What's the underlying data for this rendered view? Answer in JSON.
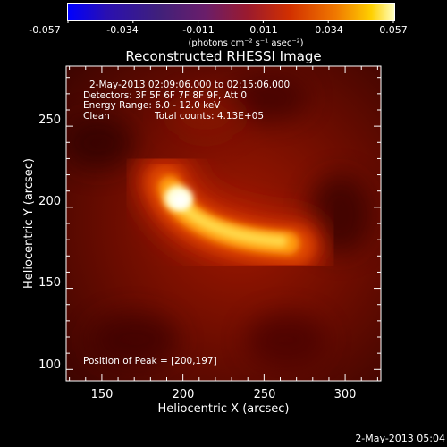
{
  "colorbar": {
    "ticks": [
      "-0.057",
      "-0.034",
      "-0.011",
      "0.011",
      "0.034",
      "0.057"
    ],
    "units_label": "(photons cm⁻² s⁻¹ asec⁻²)",
    "min": -0.057,
    "max": 0.057
  },
  "plot": {
    "title": "Reconstructed RHESSI Image",
    "xlabel": "Heliocentric X (arcsec)",
    "ylabel": "Heliocentric Y (arcsec)",
    "xlim": [
      128,
      322
    ],
    "ylim": [
      93,
      287
    ],
    "x_ticks": [
      "150",
      "200",
      "250",
      "300"
    ],
    "y_ticks": [
      "100",
      "150",
      "200",
      "250"
    ],
    "x_tick_values": [
      150,
      200,
      250,
      300
    ],
    "y_tick_values": [
      100,
      150,
      200,
      250
    ]
  },
  "annotations": {
    "time_range": "2-May-2013 02:09:06.000 to 02:15:06.000",
    "detectors": "Detectors: 3F 5F 6F 7F 8F 9F, Att 0",
    "energy": "Energy Range: 6.0 - 12.0 keV",
    "clean": "Clean",
    "total_counts": "Total counts: 4.13E+05",
    "peak": "Position of Peak = [200,197]"
  },
  "footer": {
    "timestamp": "2-May-2013 05:04"
  },
  "colors": {
    "background": "#000000",
    "text": "#ffffff"
  }
}
